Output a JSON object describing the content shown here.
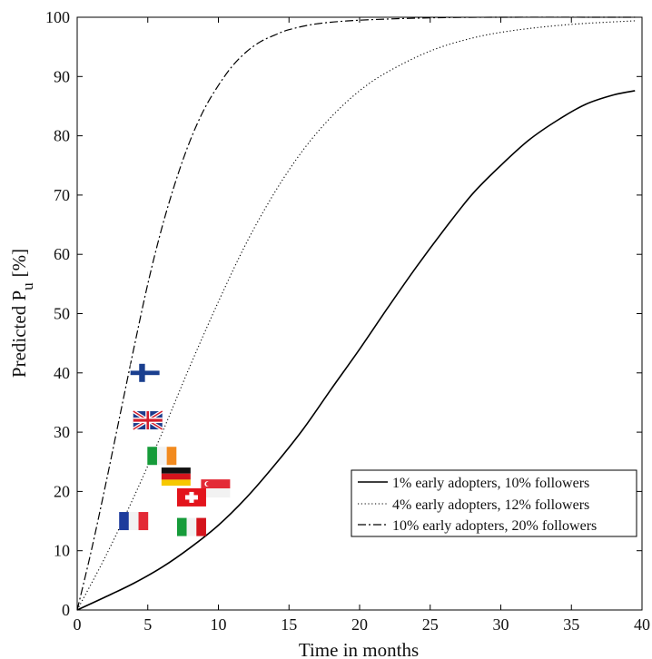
{
  "chart_data": {
    "type": "line",
    "xlabel": "Time in months",
    "ylabel_main": "Predicted P",
    "ylabel_sub": "u",
    "ylabel_unit": "[%]",
    "xlim": [
      0,
      40
    ],
    "ylim": [
      0,
      100
    ],
    "x_ticks": [
      0,
      5,
      10,
      15,
      20,
      25,
      30,
      35,
      40
    ],
    "y_ticks": [
      0,
      10,
      20,
      30,
      40,
      50,
      60,
      70,
      80,
      90,
      100
    ],
    "x_tick_labels": [
      "0",
      "5",
      "10",
      "15",
      "20",
      "25",
      "30",
      "35",
      "40"
    ],
    "y_tick_labels": [
      "0",
      "10",
      "20",
      "30",
      "40",
      "50",
      "60",
      "70",
      "80",
      "90",
      "100"
    ],
    "grid": false,
    "legend_position": "bottom-right",
    "series": [
      {
        "name": "1% early adopters, 10% followers",
        "style": "solid",
        "x": [
          0,
          2,
          4,
          6,
          8,
          10,
          12,
          14,
          16,
          18,
          20,
          22,
          24,
          26,
          28,
          30,
          32,
          34,
          36,
          38,
          39.5
        ],
        "y": [
          0,
          2.2,
          4.5,
          7.2,
          10.5,
          14.3,
          19.0,
          24.5,
          30.5,
          37.3,
          44.0,
          51.0,
          57.8,
          64.2,
          70.2,
          75.0,
          79.3,
          82.6,
          85.3,
          86.9,
          87.6
        ]
      },
      {
        "name": "4% early adopters, 12% followers",
        "style": "dotted",
        "x": [
          0,
          2,
          4,
          6,
          8,
          10,
          12,
          14,
          16,
          18,
          20,
          22,
          25,
          28,
          31,
          35,
          39.5
        ],
        "y": [
          0,
          9.0,
          19.0,
          29.8,
          41.2,
          52.0,
          62.0,
          70.5,
          77.6,
          83.2,
          87.6,
          90.8,
          94.3,
          96.5,
          97.8,
          98.8,
          99.4
        ]
      },
      {
        "name": "10% early adopters, 20% followers",
        "style": "dashdot",
        "x": [
          0,
          1,
          2,
          3,
          4,
          5,
          6,
          7,
          8,
          9,
          10,
          11,
          12,
          13,
          14,
          15,
          17,
          20,
          25,
          30,
          39.5
        ],
        "y": [
          0,
          10.0,
          21.0,
          32.5,
          44.0,
          55.0,
          64.5,
          72.5,
          79.2,
          84.5,
          88.5,
          91.8,
          94.2,
          95.9,
          97.0,
          97.9,
          98.9,
          99.5,
          99.9,
          100,
          100
        ]
      }
    ],
    "markers": [
      {
        "name": "finland-flag",
        "x": 4.8,
        "y": 40
      },
      {
        "name": "uk-flag",
        "x": 5.0,
        "y": 32
      },
      {
        "name": "ireland-flag",
        "x": 6.0,
        "y": 26
      },
      {
        "name": "germany-flag",
        "x": 7.0,
        "y": 22.5
      },
      {
        "name": "singapore-flag",
        "x": 9.8,
        "y": 20.5
      },
      {
        "name": "switzerland-flag",
        "x": 8.1,
        "y": 19
      },
      {
        "name": "france-flag",
        "x": 4.0,
        "y": 15
      },
      {
        "name": "italy-flag",
        "x": 8.1,
        "y": 14
      }
    ]
  }
}
